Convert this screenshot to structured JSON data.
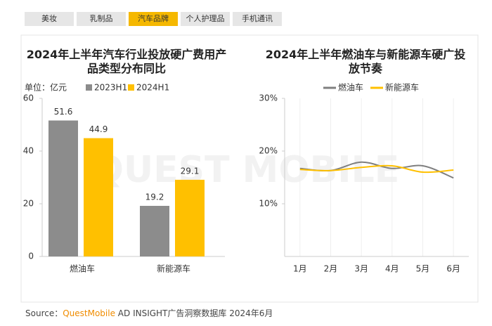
{
  "tabs": [
    "美妆",
    "乳制品",
    "汽车品牌",
    "个人护理品",
    "手机通讯"
  ],
  "active_tab": 2,
  "watermark": "QUEST MOBILE",
  "chart_data": [
    {
      "type": "bar",
      "title": "2024年上半年汽车行业投放硬广费用产品类型分布同比",
      "unit": "单位：亿元",
      "categories": [
        "燃油车",
        "新能源车"
      ],
      "series": [
        {
          "name": "2023H1",
          "color": "#8c8c8c",
          "values": [
            51.6,
            19.2
          ]
        },
        {
          "name": "2024H1",
          "color": "#ffc000",
          "values": [
            44.9,
            29.1
          ]
        }
      ],
      "ylim": [
        0,
        60
      ],
      "yticks": [
        0,
        20,
        40,
        60
      ]
    },
    {
      "type": "line",
      "title": "2024年上半年燃油车与新能源车硬广投放节奏",
      "categories": [
        "1月",
        "2月",
        "3月",
        "4月",
        "5月",
        "6月"
      ],
      "series": [
        {
          "name": "燃油车",
          "color": "#7f7f7f",
          "values": [
            16.7,
            16.3,
            17.9,
            16.7,
            17.2,
            14.9
          ]
        },
        {
          "name": "新能源车",
          "color": "#ffc000",
          "values": [
            16.5,
            16.3,
            16.9,
            17.2,
            16.0,
            16.4
          ]
        }
      ],
      "ylim": [
        0,
        30
      ],
      "yticks": [
        {
          "value": 10,
          "label": "10%"
        },
        {
          "value": 20,
          "label": "20%"
        },
        {
          "value": 30,
          "label": "30%"
        }
      ]
    }
  ],
  "source": {
    "label": "Source：",
    "brand": "QuestMobile",
    "text": " AD INSIGHT广告洞察数据库 2024年6月"
  }
}
